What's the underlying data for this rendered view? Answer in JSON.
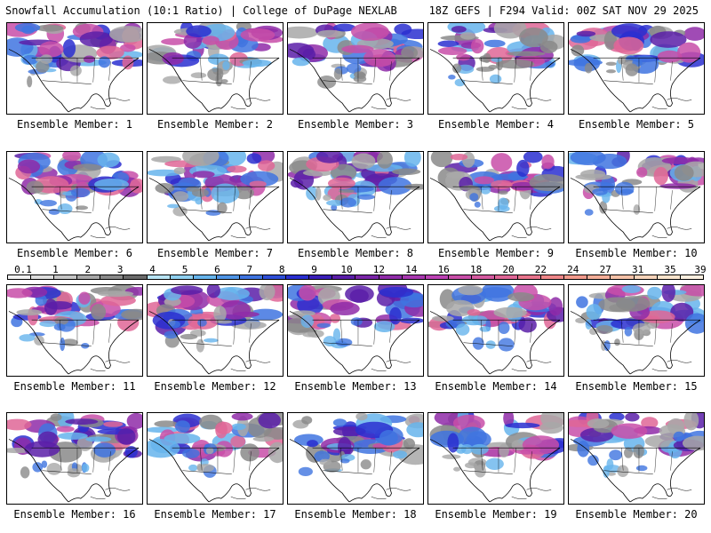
{
  "header": {
    "left": "Snowfall Accumulation (10:1 Ratio) | College of DuPage NEXLAB",
    "right": "18Z GEFS | F294 Valid: 00Z SAT NOV 29 2025"
  },
  "members": [
    {
      "label": "Ensemble Member: 1"
    },
    {
      "label": "Ensemble Member: 2"
    },
    {
      "label": "Ensemble Member: 3"
    },
    {
      "label": "Ensemble Member: 4"
    },
    {
      "label": "Ensemble Member: 5"
    },
    {
      "label": "Ensemble Member: 6"
    },
    {
      "label": "Ensemble Member: 7"
    },
    {
      "label": "Ensemble Member: 8"
    },
    {
      "label": "Ensemble Member: 9"
    },
    {
      "label": "Ensemble Member: 10"
    },
    {
      "label": "Ensemble Member: 11"
    },
    {
      "label": "Ensemble Member: 12"
    },
    {
      "label": "Ensemble Member: 13"
    },
    {
      "label": "Ensemble Member: 14"
    },
    {
      "label": "Ensemble Member: 15"
    },
    {
      "label": "Ensemble Member: 16"
    },
    {
      "label": "Ensemble Member: 17"
    },
    {
      "label": "Ensemble Member: 18"
    },
    {
      "label": "Ensemble Member: 19"
    },
    {
      "label": "Ensemble Member: 20"
    }
  ],
  "scale": {
    "labels": [
      "0.1",
      "1",
      "2",
      "3",
      "4",
      "5",
      "6",
      "7",
      "8",
      "9",
      "10",
      "12",
      "14",
      "16",
      "18",
      "20",
      "22",
      "24",
      "27",
      "31",
      "35",
      "39"
    ],
    "colors": [
      "#f2f2f2",
      "#dedede",
      "#c6c6c6",
      "#a8a8a8",
      "#8a8a8a",
      "#6a6a6a",
      "#b8e4f4",
      "#8fd0f0",
      "#66b4ec",
      "#4f95e6",
      "#3f74e0",
      "#2f4fd8",
      "#2a2fd0",
      "#3a1fb8",
      "#5a1ea8",
      "#7a26a8",
      "#8f2ca8",
      "#a838b0",
      "#bc42b4",
      "#c84ea8",
      "#d55aa0",
      "#df6696",
      "#e8748c",
      "#ee8688",
      "#f29a8c",
      "#f4ae98",
      "#f6c2a8",
      "#f8d4ba",
      "#fae4cc",
      "#fcf0e0"
    ]
  }
}
